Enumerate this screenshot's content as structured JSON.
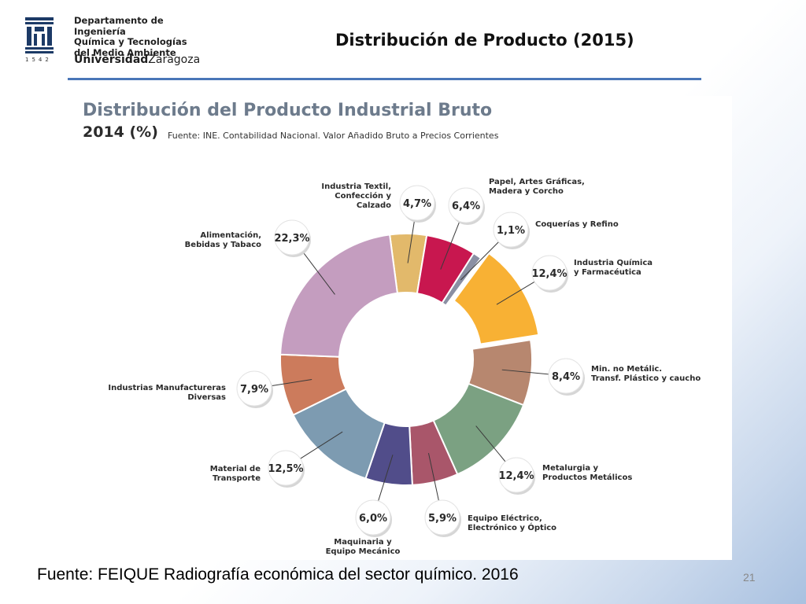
{
  "header": {
    "logo_lines": [
      "Departamento de Ingeniería",
      "Química y Tecnologías",
      "del Medio Ambiente"
    ],
    "logo_university_bold": "Universidad",
    "logo_university_rest": "Zaragoza",
    "logo_year": "1542",
    "slide_title": "Distribución de Producto (2015)"
  },
  "chart_data": {
    "type": "pie",
    "donut": true,
    "title": "Distribución del Producto Industrial Bruto",
    "subtitle": "2014 (%)",
    "source": "Fuente: INE. Contabilidad Nacional. Valor Añadido Bruto a Precios Corrientes",
    "unit": "%",
    "categories": [
      "Industria Textil, Confección y Calzado",
      "Papel, Artes Gráficas, Madera y Corcho",
      "Coquerías y Refino",
      "Industria Química y Farmacéutica",
      "Min. no Metálic. Transf. Plástico y caucho",
      "Metalurgia y Productos Metálicos",
      "Equipo Eléctrico, Electrónico y Óptico",
      "Maquinaria y Equipo Mecánico",
      "Material de Transporte",
      "Industrias Manufactureras Diversas",
      "Alimentación, Bebidas y Tabaco"
    ],
    "category_label_lines": [
      [
        "Industria Textil,",
        "Confección y",
        "Calzado"
      ],
      [
        "Papel, Artes Gráficas,",
        "Madera y Corcho"
      ],
      [
        "Coquerías y Refino"
      ],
      [
        "Industria Química",
        "y Farmacéutica"
      ],
      [
        "Min. no Metálic.",
        "Transf. Plástico y caucho"
      ],
      [
        "Metalurgia y",
        "Productos Metálicos"
      ],
      [
        "Equipo Eléctrico,",
        "Electrónico y Óptico"
      ],
      [
        "Maquinaria y",
        "Equipo Mecánico"
      ],
      [
        "Material de",
        "Transporte"
      ],
      [
        "Industrias Manufactureras",
        "Diversas"
      ],
      [
        "Alimentación,",
        "Bebidas y Tabaco"
      ]
    ],
    "values": [
      4.7,
      6.4,
      1.1,
      12.4,
      8.4,
      12.4,
      5.9,
      6.0,
      12.5,
      7.9,
      22.3
    ],
    "value_labels": [
      "4,7%",
      "6,4%",
      "1,1%",
      "12,4%",
      "8,4%",
      "12,4%",
      "5,9%",
      "6,0%",
      "12,5%",
      "7,9%",
      "22,3%"
    ],
    "colors": [
      "#e2b96b",
      "#c8174f",
      "#8a8fa3",
      "#f8b134",
      "#b7876f",
      "#7ba182",
      "#a9566a",
      "#514d8a",
      "#7d9bb1",
      "#cc7b5c",
      "#c49dbf"
    ],
    "exploded": "Industria Química y Farmacéutica"
  },
  "footer": {
    "source": "Fuente: FEIQUE Radiografía económica del sector químico. 2016",
    "page_number": "21"
  }
}
